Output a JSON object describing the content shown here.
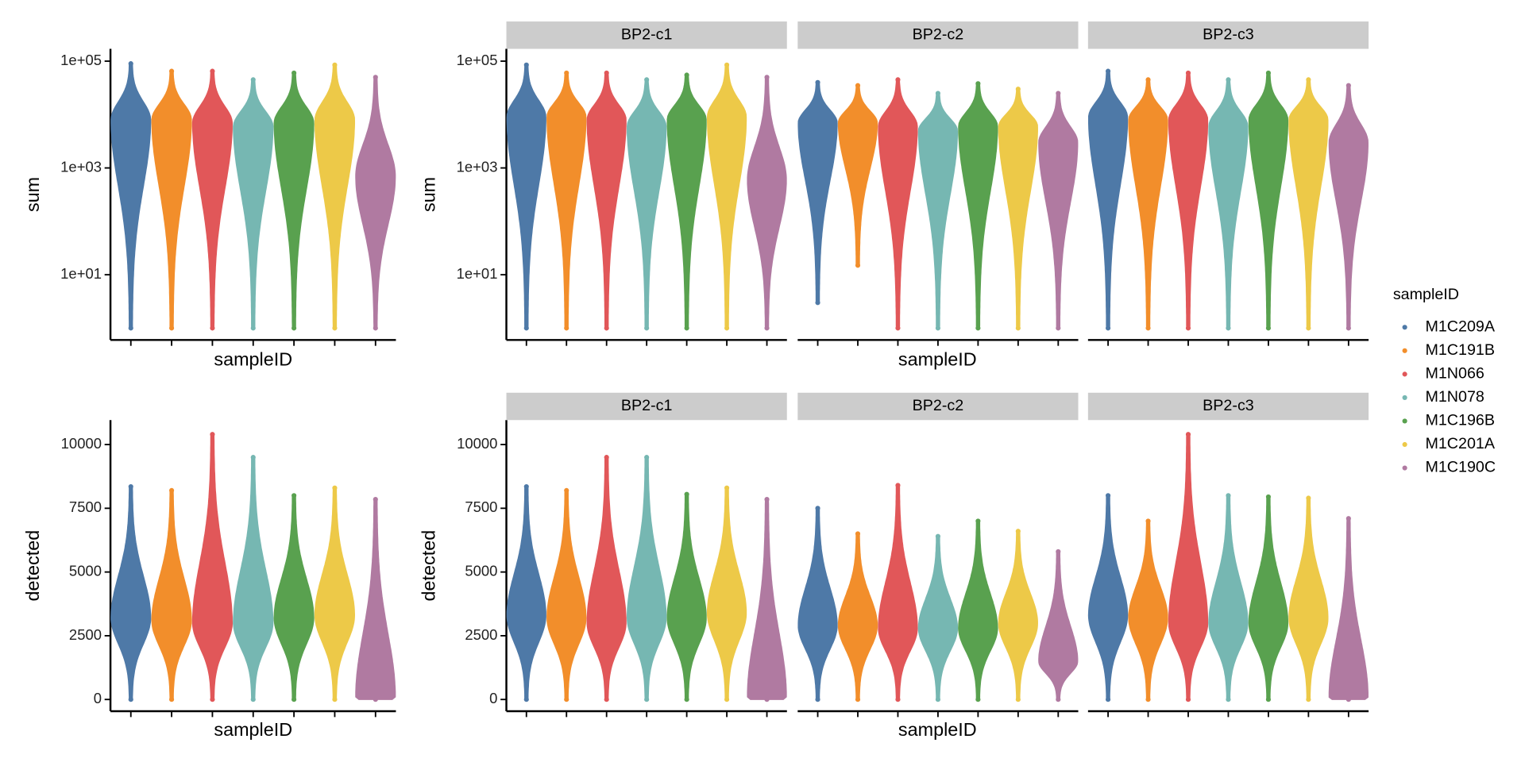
{
  "chart_data": [
    {
      "type": "violin",
      "y_label": "sum",
      "x_label": "sampleID",
      "log_y": true,
      "ylim": [
        0.6,
        170000
      ],
      "yticks": [
        {
          "value": 10,
          "label": "1e+01"
        },
        {
          "value": 1000,
          "label": "1e+03"
        },
        {
          "value": 100000,
          "label": "1e+05"
        }
      ],
      "facets": [
        {
          "min": [
            1,
            1,
            1,
            1,
            1,
            1,
            1
          ],
          "mode": [
            8000,
            8000,
            7000,
            6000,
            7000,
            8000,
            700
          ],
          "max": [
            90000,
            65000,
            65000,
            45000,
            60000,
            85000,
            50000
          ]
        }
      ]
    },
    {
      "type": "violin",
      "y_label": "sum",
      "x_label": "sampleID",
      "log_y": true,
      "ylim": [
        0.6,
        170000
      ],
      "yticks": [
        {
          "value": 10,
          "label": "1e+01"
        },
        {
          "value": 1000,
          "label": "1e+03"
        },
        {
          "value": 100000,
          "label": "1e+05"
        }
      ],
      "facets": [
        {
          "title": "BP2-c1",
          "min": [
            1,
            1,
            1,
            1,
            1,
            1,
            1
          ],
          "mode": [
            9000,
            9000,
            8000,
            6000,
            8000,
            9000,
            600
          ],
          "max": [
            85000,
            60000,
            60000,
            45000,
            55000,
            85000,
            50000
          ]
        },
        {
          "title": "BP2-c2",
          "min": [
            3,
            15,
            1,
            1,
            1,
            1,
            1
          ],
          "mode": [
            7000,
            7000,
            6000,
            5000,
            6000,
            6000,
            3000
          ],
          "max": [
            40000,
            35000,
            45000,
            25000,
            38000,
            30000,
            25000
          ]
        },
        {
          "title": "BP2-c3",
          "min": [
            1,
            1,
            1,
            1,
            1,
            1,
            1
          ],
          "mode": [
            9000,
            8000,
            8000,
            6000,
            8000,
            8000,
            3000
          ],
          "max": [
            65000,
            45000,
            60000,
            45000,
            60000,
            45000,
            35000
          ]
        }
      ]
    },
    {
      "type": "violin",
      "y_label": "detected",
      "x_label": "sampleID",
      "log_y": false,
      "ylim": [
        -460,
        10960
      ],
      "yticks": [
        0,
        2500,
        5000,
        7500,
        10000
      ],
      "facets": [
        {
          "min": [
            0,
            0,
            0,
            0,
            0,
            0,
            0
          ],
          "mode": [
            3200,
            3100,
            3000,
            3000,
            3200,
            3300,
            100
          ],
          "max": [
            8350,
            8200,
            10400,
            9500,
            8000,
            8300,
            7850
          ]
        }
      ]
    },
    {
      "type": "violin",
      "y_label": "detected",
      "x_label": "sampleID",
      "log_y": false,
      "ylim": [
        -460,
        10960
      ],
      "yticks": [
        0,
        2500,
        5000,
        7500,
        10000
      ],
      "facets": [
        {
          "title": "BP2-c1",
          "min": [
            0,
            0,
            0,
            0,
            0,
            0,
            0
          ],
          "mode": [
            3300,
            3200,
            3000,
            3200,
            3200,
            3400,
            100
          ],
          "max": [
            8350,
            8200,
            9500,
            9500,
            8050,
            8300,
            7850
          ]
        },
        {
          "title": "BP2-c2",
          "min": [
            0,
            0,
            0,
            0,
            0,
            0,
            0
          ],
          "mode": [
            2900,
            2900,
            2800,
            2800,
            2800,
            3000,
            1500
          ],
          "max": [
            7500,
            6500,
            8400,
            6400,
            7000,
            6600,
            5800
          ]
        },
        {
          "title": "BP2-c3",
          "min": [
            0,
            0,
            0,
            0,
            0,
            0,
            0
          ],
          "mode": [
            3300,
            3200,
            3000,
            3000,
            3000,
            3200,
            100
          ],
          "max": [
            8000,
            7000,
            10400,
            8000,
            7950,
            7900,
            7100
          ]
        }
      ]
    }
  ],
  "legend": {
    "title": "sampleID",
    "entries": [
      {
        "name": "M1C209A",
        "color": "#4e79a7"
      },
      {
        "name": "M1C191B",
        "color": "#f28e2b"
      },
      {
        "name": "M1N066",
        "color": "#e15759"
      },
      {
        "name": "M1N078",
        "color": "#76b7b2"
      },
      {
        "name": "M1C196B",
        "color": "#59a14f"
      },
      {
        "name": "M1C201A",
        "color": "#edc948"
      },
      {
        "name": "M1C190C",
        "color": "#b07aa1"
      }
    ]
  }
}
